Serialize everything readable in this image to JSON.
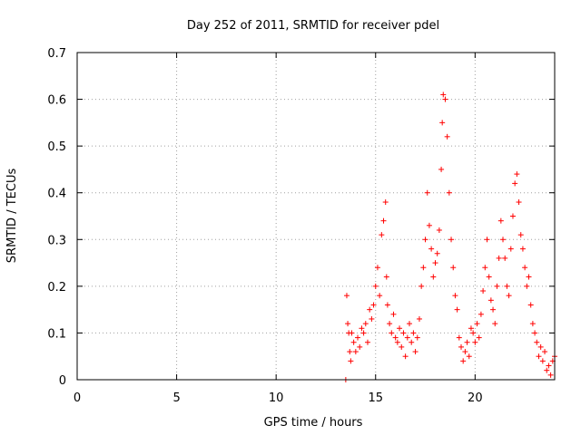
{
  "chart_data": {
    "type": "scatter",
    "title": "Day 252 of 2011, SRMTID for receiver pdel",
    "xlabel": "GPS time / hours",
    "ylabel": "SRMTID / TECUs",
    "xlim": [
      0,
      24
    ],
    "ylim": [
      0,
      0.7
    ],
    "xticks": [
      0,
      5,
      10,
      15,
      20
    ],
    "xtick_labels": [
      "0",
      "5",
      "10",
      "15",
      "20"
    ],
    "yticks": [
      0,
      0.1,
      0.2,
      0.3,
      0.4,
      0.5,
      0.6,
      0.7
    ],
    "ytick_labels": [
      "0",
      "0.1",
      "0.2",
      "0.3",
      "0.4",
      "0.5",
      "0.6",
      "0.7"
    ],
    "grid": true,
    "marker": "plus",
    "series": [
      {
        "name": "SRMTID",
        "color": "#ff0000",
        "x": [
          13.5,
          13.55,
          13.6,
          13.65,
          13.7,
          13.75,
          13.8,
          13.9,
          14.0,
          14.1,
          14.2,
          14.3,
          14.4,
          14.5,
          14.6,
          14.7,
          14.8,
          14.9,
          15.0,
          15.1,
          15.2,
          15.3,
          15.4,
          15.5,
          15.55,
          15.6,
          15.7,
          15.8,
          15.9,
          16.0,
          16.1,
          16.2,
          16.3,
          16.4,
          16.5,
          16.6,
          16.7,
          16.8,
          16.9,
          17.0,
          17.1,
          17.2,
          17.3,
          17.4,
          17.5,
          17.6,
          17.7,
          17.8,
          17.9,
          18.0,
          18.1,
          18.2,
          18.3,
          18.35,
          18.4,
          18.5,
          18.6,
          18.7,
          18.8,
          18.9,
          19.0,
          19.1,
          19.2,
          19.3,
          19.4,
          19.5,
          19.6,
          19.7,
          19.8,
          19.9,
          20.0,
          20.1,
          20.2,
          20.3,
          20.4,
          20.5,
          20.6,
          20.7,
          20.8,
          20.9,
          21.0,
          21.1,
          21.2,
          21.3,
          21.4,
          21.5,
          21.6,
          21.7,
          21.8,
          21.9,
          22.0,
          22.1,
          22.2,
          22.3,
          22.4,
          22.5,
          22.6,
          22.7,
          22.8,
          22.9,
          23.0,
          23.1,
          23.2,
          23.3,
          23.4,
          23.5,
          23.6,
          23.7,
          23.8,
          23.9,
          24.0
        ],
        "y": [
          0.0,
          0.18,
          0.12,
          0.1,
          0.06,
          0.04,
          0.1,
          0.08,
          0.06,
          0.09,
          0.07,
          0.11,
          0.1,
          0.12,
          0.08,
          0.15,
          0.13,
          0.16,
          0.2,
          0.24,
          0.18,
          0.31,
          0.34,
          0.38,
          0.22,
          0.16,
          0.12,
          0.1,
          0.14,
          0.09,
          0.08,
          0.11,
          0.07,
          0.1,
          0.05,
          0.09,
          0.12,
          0.08,
          0.1,
          0.06,
          0.09,
          0.13,
          0.2,
          0.24,
          0.3,
          0.4,
          0.33,
          0.28,
          0.22,
          0.25,
          0.27,
          0.32,
          0.45,
          0.55,
          0.61,
          0.6,
          0.52,
          0.4,
          0.3,
          0.24,
          0.18,
          0.15,
          0.09,
          0.07,
          0.04,
          0.06,
          0.08,
          0.05,
          0.11,
          0.1,
          0.08,
          0.12,
          0.09,
          0.14,
          0.19,
          0.24,
          0.3,
          0.22,
          0.17,
          0.15,
          0.12,
          0.2,
          0.26,
          0.34,
          0.3,
          0.26,
          0.2,
          0.18,
          0.28,
          0.35,
          0.42,
          0.44,
          0.38,
          0.31,
          0.28,
          0.24,
          0.2,
          0.22,
          0.16,
          0.12,
          0.1,
          0.08,
          0.05,
          0.07,
          0.04,
          0.06,
          0.02,
          0.03,
          0.01,
          0.04,
          0.05
        ]
      }
    ]
  }
}
